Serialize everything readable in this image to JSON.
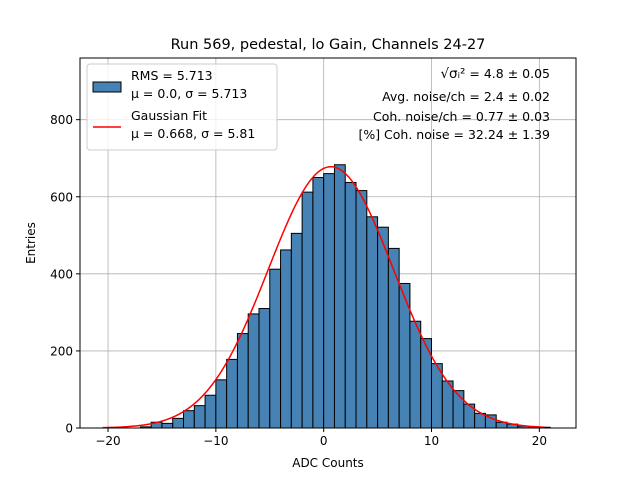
{
  "chart_data": {
    "type": "bar",
    "title": "Run 569, pedestal, lo Gain, Channels 24-27",
    "xlabel": "ADC Counts",
    "ylabel": "Entries",
    "xlim": [
      -22.6,
      23.4
    ],
    "ylim": [
      0,
      960
    ],
    "xticks": [
      -20,
      -10,
      0,
      10,
      20
    ],
    "xtick_labels": [
      "−20",
      "−10",
      "0",
      "10",
      "20"
    ],
    "yticks": [
      0,
      200,
      400,
      600,
      800
    ],
    "ytick_labels": [
      "0",
      "200",
      "400",
      "600",
      "800"
    ],
    "grid": true,
    "legend_position": "top-left",
    "colors": {
      "bars": "#4682b4",
      "bar_edge": "#000000",
      "fit": "#ff0000",
      "grid": "#b0b0b0"
    },
    "histogram": {
      "name": "RMS = 5.713",
      "name_line2": "μ = 0.0, σ = 5.713",
      "bin_edges": [
        -17,
        -16,
        -15,
        -14,
        -13,
        -12,
        -11,
        -10,
        -9,
        -8,
        -7,
        -6,
        -5,
        -4,
        -3,
        -2,
        -1,
        0,
        1,
        2,
        3,
        4,
        5,
        6,
        7,
        8,
        9,
        10,
        11,
        12,
        13,
        14,
        15,
        16,
        17,
        18,
        19,
        20,
        21
      ],
      "counts": [
        3,
        15,
        12,
        25,
        45,
        58,
        85,
        125,
        178,
        245,
        296,
        310,
        412,
        462,
        505,
        612,
        650,
        660,
        683,
        637,
        616,
        548,
        521,
        466,
        375,
        277,
        232,
        167,
        122,
        97,
        62,
        38,
        34,
        15,
        10,
        5,
        3,
        2
      ]
    },
    "fit": {
      "name": "Gaussian Fit",
      "name_line2": "μ = 0.668, σ = 5.81",
      "mu": 0.668,
      "sigma": 5.81,
      "amplitude": 678,
      "x_range": [
        -20.5,
        20.5
      ]
    },
    "annotations": [
      {
        "lines": [
          "√σᵢ²",
          " = 4.8 ± 0.05"
        ]
      },
      {
        "text": "Avg. noise/ch = 2.4 ± 0.02"
      },
      {
        "text": "Coh. noise/ch = 0.77 ± 0.03"
      },
      {
        "text": "[%] Coh. noise = 32.24 ± 1.39"
      }
    ]
  }
}
